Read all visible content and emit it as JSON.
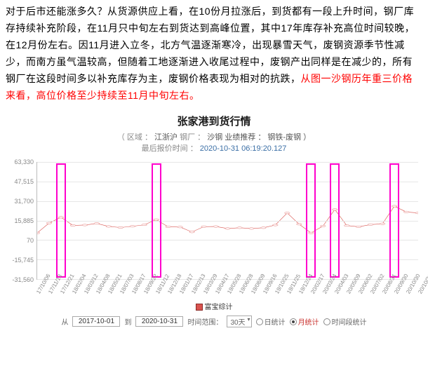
{
  "paragraph": {
    "black": "对于后市还能涨多久？从货源供应上看，在10份月拉涨后，到货都有一段上升时间，钢厂库存持续补充阶段，在11月只中旬左右到货达到高峰位置，其中17年库存补充高位时间较晚，在12月份左右。因11月进入立冬，北方气温逐渐寒冷，出现暴雪天气，废钢资源季节性减少，而南方虽气温较高，但随着工地逐渐进入收尾过程中，废钢产出同样是在减少的，所有钢厂在这段时间多以补充库存为主，废钢价格表现为相对的抗跌，",
    "red": "从图一沙钢历年重三价格来看，高位价格至少持续至11月中旬左右。"
  },
  "chart": {
    "title": "张家港到货行情",
    "subtitle_region_label": "（ 区域 ：",
    "subtitle_region": "江浙沪",
    "subtitle_mill_label": "  钢厂 ：",
    "subtitle_mill": "沙钢 业绩推荐 ：",
    "subtitle_cat": "钢铁-废钢 ）",
    "subtitle_time_label": "最后报价时间 ：",
    "subtitle_time": "2020-10-31 06:19:20.127",
    "type": "line",
    "ylim": [
      -31560,
      63330
    ],
    "yticks": [
      -31560,
      -15745,
      70,
      15885,
      31700,
      47515,
      63330
    ],
    "xlabels": [
      "17/10/06",
      "17/11/13",
      "17/12/21",
      "18/02/04",
      "18/03/12",
      "18/04/08",
      "18/05/21",
      "18/07/03",
      "18/08/17",
      "18/09/22",
      "18/11/12",
      "18/12/18",
      "19/01/17",
      "19/02/13",
      "19/03/29",
      "19/04/17",
      "19/05/28",
      "19/06/28",
      "19/08/09",
      "19/09/16",
      "19/10/25",
      "19/11/25",
      "19/12/24",
      "20/02/17",
      "20/03/24",
      "20/04/03",
      "20/05/09",
      "20/06/02",
      "20/07/02",
      "20/08/31",
      "20/09/30",
      "20/10/30",
      "20/10/31"
    ],
    "values": [
      5800,
      13800,
      18500,
      11900,
      12200,
      13500,
      11100,
      10200,
      11200,
      12400,
      16600,
      10800,
      10600,
      6600,
      10900,
      11000,
      9400,
      10000,
      9400,
      10000,
      12200,
      22000,
      12900,
      5800,
      11400,
      24800,
      11800,
      10800,
      12600,
      13200,
      27500,
      22800,
      22000
    ],
    "highlight_indices": [
      2,
      10,
      23,
      25,
      30
    ],
    "line_color": "#d9534f",
    "marker_color": "#d9534f",
    "grid_color": "#e6e6e6",
    "highlight_color": "#ff00cc",
    "legend": "富宝综计"
  },
  "controls": {
    "from_label": "从",
    "from": "2017-10-01",
    "to_label": "到",
    "to": "2020-10-31",
    "span_label": "时间范围：",
    "span": "30天",
    "resolutions": [
      "日统计",
      "月统计",
      "时间段统计"
    ],
    "resolution_sel_index": 1
  }
}
